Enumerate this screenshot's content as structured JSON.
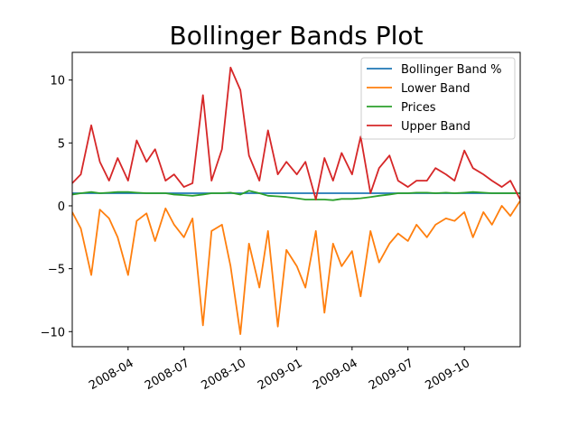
{
  "chart_data": {
    "type": "line",
    "title": "Bollinger Bands Plot",
    "xlabel": "",
    "ylabel": "",
    "x_range": [
      "2008-01-01",
      "2009-12-31"
    ],
    "ylim": [
      -11.2,
      12.2
    ],
    "x_ticks": [
      {
        "date": "2008-04-01",
        "label": "2008-04"
      },
      {
        "date": "2008-07-01",
        "label": "2008-07"
      },
      {
        "date": "2008-10-01",
        "label": "2008-10"
      },
      {
        "date": "2009-01-01",
        "label": "2009-01"
      },
      {
        "date": "2009-04-01",
        "label": "2009-04"
      },
      {
        "date": "2009-07-01",
        "label": "2009-07"
      },
      {
        "date": "2009-10-01",
        "label": "2009-10"
      }
    ],
    "y_ticks": [
      -10,
      -5,
      0,
      5,
      10
    ],
    "grid": false,
    "legend_position": "top-right",
    "x": [
      "2008-01-01",
      "2008-01-15",
      "2008-02-01",
      "2008-02-15",
      "2008-03-01",
      "2008-03-15",
      "2008-04-01",
      "2008-04-15",
      "2008-05-01",
      "2008-05-15",
      "2008-06-01",
      "2008-06-15",
      "2008-07-01",
      "2008-07-15",
      "2008-08-01",
      "2008-08-15",
      "2008-09-01",
      "2008-09-15",
      "2008-10-01",
      "2008-10-15",
      "2008-11-01",
      "2008-11-15",
      "2008-12-01",
      "2008-12-15",
      "2009-01-01",
      "2009-01-15",
      "2009-02-01",
      "2009-02-15",
      "2009-03-01",
      "2009-03-15",
      "2009-04-01",
      "2009-04-15",
      "2009-05-01",
      "2009-05-15",
      "2009-06-01",
      "2009-06-15",
      "2009-07-01",
      "2009-07-15",
      "2009-08-01",
      "2009-08-15",
      "2009-09-01",
      "2009-09-15",
      "2009-10-01",
      "2009-10-15",
      "2009-11-01",
      "2009-11-15",
      "2009-12-01",
      "2009-12-15",
      "2009-12-31"
    ],
    "series": [
      {
        "name": "Bollinger Band %",
        "color": "#1f77b4",
        "values": [
          1.0,
          1.0,
          1.0,
          1.0,
          1.0,
          1.0,
          1.0,
          1.0,
          1.0,
          1.0,
          1.0,
          1.0,
          1.0,
          1.0,
          1.0,
          1.0,
          1.0,
          1.0,
          1.0,
          1.0,
          1.0,
          1.0,
          1.0,
          1.0,
          1.0,
          1.0,
          1.0,
          1.0,
          1.0,
          1.0,
          1.0,
          1.0,
          1.0,
          1.0,
          1.0,
          1.0,
          1.0,
          1.0,
          1.0,
          1.0,
          1.0,
          1.0,
          1.0,
          1.0,
          1.0,
          1.0,
          1.0,
          1.0,
          1.0
        ]
      },
      {
        "name": "Lower Band",
        "color": "#ff7f0e",
        "values": [
          -0.5,
          -1.8,
          -5.5,
          -0.3,
          -1.0,
          -2.5,
          -5.5,
          -1.2,
          -0.6,
          -2.8,
          -0.2,
          -1.5,
          -2.5,
          -1.0,
          -9.5,
          -2.0,
          -1.5,
          -4.8,
          -10.2,
          -3.0,
          -6.5,
          -2.0,
          -9.6,
          -3.5,
          -4.8,
          -6.5,
          -2.0,
          -8.5,
          -3.0,
          -4.8,
          -3.6,
          -7.2,
          -2.0,
          -4.5,
          -3.0,
          -2.2,
          -2.8,
          -1.5,
          -2.5,
          -1.5,
          -1.0,
          -1.2,
          -0.5,
          -2.5,
          -0.5,
          -1.5,
          0.0,
          -0.8,
          0.4
        ]
      },
      {
        "name": "Prices",
        "color": "#2ca02c",
        "values": [
          0.9,
          1.0,
          1.1,
          1.0,
          1.05,
          1.1,
          1.1,
          1.05,
          1.0,
          1.0,
          1.0,
          0.9,
          0.85,
          0.8,
          0.9,
          1.0,
          1.0,
          1.05,
          0.9,
          1.2,
          1.0,
          0.8,
          0.75,
          0.7,
          0.6,
          0.5,
          0.5,
          0.5,
          0.45,
          0.55,
          0.55,
          0.6,
          0.7,
          0.8,
          0.9,
          1.0,
          1.0,
          1.05,
          1.05,
          1.0,
          1.05,
          1.0,
          1.05,
          1.1,
          1.05,
          1.0,
          1.0,
          1.0,
          1.0
        ]
      },
      {
        "name": "Upper Band",
        "color": "#d62728",
        "values": [
          1.8,
          2.5,
          6.4,
          3.5,
          2.0,
          3.8,
          2.0,
          5.2,
          3.5,
          4.5,
          2.0,
          2.5,
          1.5,
          1.8,
          8.8,
          2.0,
          4.5,
          11.0,
          9.2,
          4.0,
          2.0,
          6.0,
          2.5,
          3.5,
          2.5,
          3.5,
          0.5,
          3.8,
          2.0,
          4.2,
          2.5,
          5.5,
          1.0,
          3.0,
          4.0,
          2.0,
          1.5,
          2.0,
          2.0,
          3.0,
          2.5,
          2.0,
          4.4,
          3.0,
          2.5,
          2.0,
          1.5,
          2.0,
          0.5
        ]
      }
    ]
  }
}
